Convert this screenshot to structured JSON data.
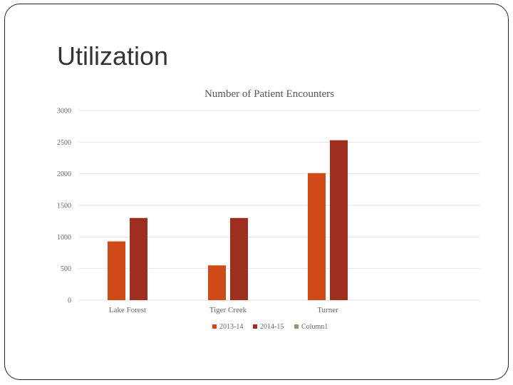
{
  "slide": {
    "title": "Utilization"
  },
  "chart_data": {
    "type": "bar",
    "title": "Number of Patient Encounters",
    "categories": [
      "Lake Forest",
      "Tiger Creek",
      "Turner"
    ],
    "series": [
      {
        "name": "2013-14",
        "values": [
          930,
          550,
          2010
        ],
        "color": "#d04a18"
      },
      {
        "name": "2014-15",
        "values": [
          1300,
          1300,
          2530
        ],
        "color": "#9e2f1f"
      },
      {
        "name": "Column1",
        "values": [
          0,
          0,
          0
        ],
        "color": "#8f9a72"
      }
    ],
    "yticks": [
      "0",
      "500",
      "1000",
      "1500",
      "2000",
      "2500",
      "3000"
    ],
    "ylim": [
      0,
      3000
    ],
    "xlabel": "",
    "ylabel": "",
    "grid": true,
    "legend": "bottom"
  }
}
